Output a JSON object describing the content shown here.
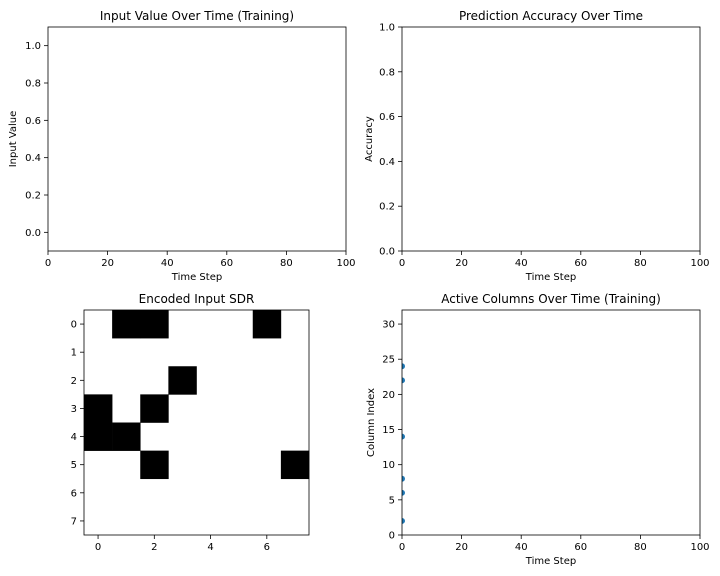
{
  "chart_data": [
    {
      "type": "line",
      "title": "Input Value Over Time (Training)",
      "xlabel": "Time Step",
      "ylabel": "Input Value",
      "xlim": [
        0,
        100
      ],
      "ylim": [
        -0.1,
        1.1
      ],
      "xticks": [
        "0",
        "20",
        "40",
        "60",
        "80",
        "100"
      ],
      "yticks": [
        "0.0",
        "0.2",
        "0.4",
        "0.6",
        "0.8",
        "1.0"
      ],
      "series": [],
      "grid": false
    },
    {
      "type": "line",
      "title": "Prediction Accuracy Over Time",
      "xlabel": "Time Step",
      "ylabel": "Accuracy",
      "xlim": [
        0,
        100
      ],
      "ylim": [
        0,
        1
      ],
      "xticks": [
        "0",
        "20",
        "40",
        "60",
        "80",
        "100"
      ],
      "yticks": [
        "0.0",
        "0.2",
        "0.4",
        "0.6",
        "0.8",
        "1.0"
      ],
      "series": [],
      "grid": false
    },
    {
      "type": "heatmap",
      "title": "Encoded Input SDR",
      "xticks": [
        "0",
        "2",
        "4",
        "6"
      ],
      "yticks": [
        "0",
        "1",
        "2",
        "3",
        "4",
        "5",
        "6",
        "7"
      ],
      "colors": {
        "on": "#000000",
        "off": "#ffffff"
      },
      "matrix": [
        [
          0,
          1,
          1,
          0,
          0,
          0,
          1,
          0
        ],
        [
          0,
          0,
          0,
          0,
          0,
          0,
          0,
          0
        ],
        [
          0,
          0,
          0,
          1,
          0,
          0,
          0,
          0
        ],
        [
          1,
          0,
          1,
          0,
          0,
          0,
          0,
          0
        ],
        [
          1,
          1,
          0,
          0,
          0,
          0,
          0,
          0
        ],
        [
          0,
          0,
          1,
          0,
          0,
          0,
          0,
          1
        ],
        [
          0,
          0,
          0,
          0,
          0,
          0,
          0,
          0
        ],
        [
          0,
          0,
          0,
          0,
          0,
          0,
          0,
          0
        ]
      ]
    },
    {
      "type": "scatter",
      "title": "Active Columns Over Time (Training)",
      "xlabel": "Time Step",
      "ylabel": "Column Index",
      "xlim": [
        0,
        100
      ],
      "ylim": [
        0,
        32
      ],
      "xticks": [
        "0",
        "20",
        "40",
        "60",
        "80",
        "100"
      ],
      "yticks": [
        "0",
        "5",
        "10",
        "15",
        "20",
        "25",
        "30"
      ],
      "marker_color": "#1f77b4",
      "series": [
        {
          "x": [
            0,
            0,
            0,
            0,
            0,
            0
          ],
          "y": [
            2,
            6,
            8,
            14,
            22,
            24
          ]
        }
      ],
      "grid": false
    }
  ]
}
